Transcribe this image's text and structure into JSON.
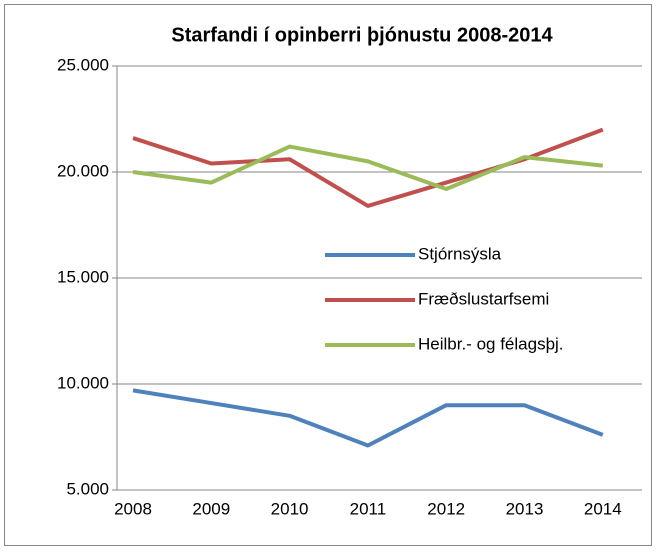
{
  "chart_data": {
    "type": "line",
    "title": "Starfandi í opinberri þjónustu 2008-2014",
    "categories": [
      "2008",
      "2009",
      "2010",
      "2011",
      "2012",
      "2013",
      "2014"
    ],
    "series": [
      {
        "name": "Stjórnsýsla",
        "color": "#4f81bd",
        "values": [
          9700,
          9100,
          8500,
          7100,
          9000,
          9000,
          7600
        ]
      },
      {
        "name": "Fræðslustarfsemi",
        "color": "#c0504d",
        "values": [
          21600,
          20400,
          20600,
          18400,
          19500,
          20600,
          22000
        ]
      },
      {
        "name": "Heilbr.- og félagsþj.",
        "color": "#9bbb59",
        "values": [
          20000,
          19500,
          21200,
          20500,
          19200,
          20700,
          20300
        ]
      }
    ],
    "ylim": [
      5000,
      25000
    ],
    "yticks": [
      {
        "value": 5000,
        "label": "5.000"
      },
      {
        "value": 10000,
        "label": "10.000"
      },
      {
        "value": 15000,
        "label": "15.000"
      },
      {
        "value": 20000,
        "label": "20.000"
      },
      {
        "value": 25000,
        "label": "25.000"
      }
    ],
    "grid": true,
    "legend": "center"
  }
}
